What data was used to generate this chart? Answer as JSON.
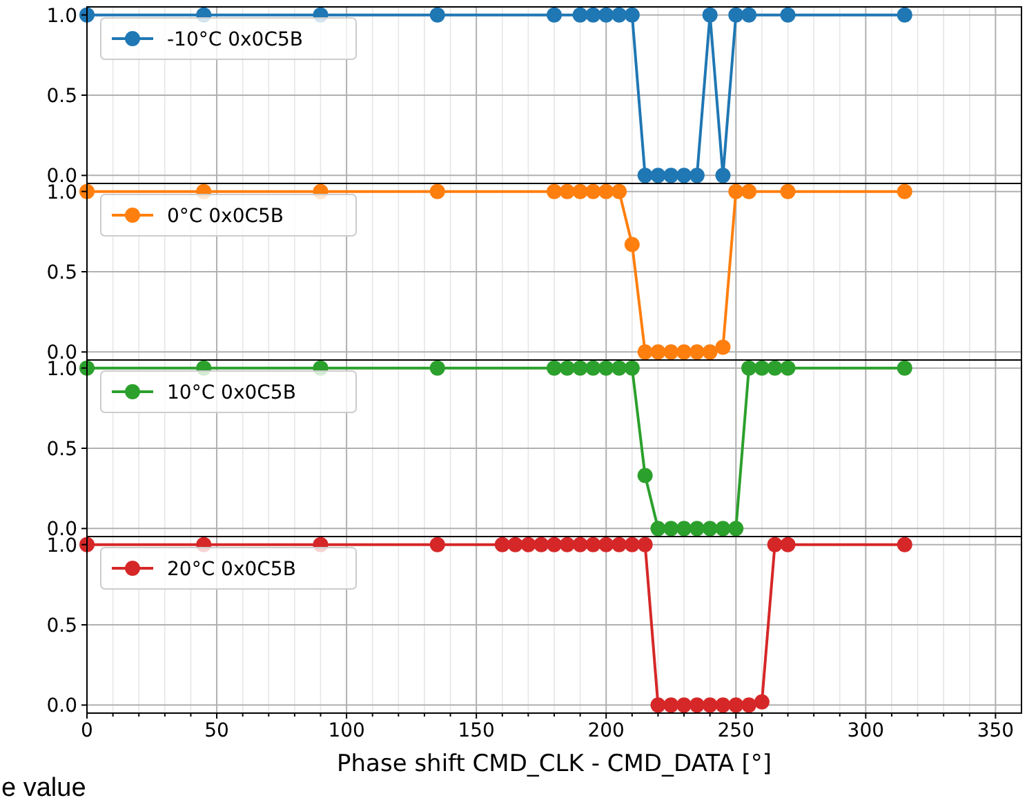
{
  "chart_data": [
    {
      "type": "line",
      "xlim": [
        0,
        360
      ],
      "ylim": [
        -0.05,
        1.05
      ],
      "xticks": [
        0,
        {
          "value": 10,
          "label": null
        },
        {
          "value": 20,
          "label": null
        },
        {
          "value": 30,
          "label": null
        },
        {
          "value": 40,
          "label": null
        },
        50,
        {
          "value": 60,
          "label": null
        },
        {
          "value": 70,
          "label": null
        },
        {
          "value": 80,
          "label": null
        },
        {
          "value": 90,
          "label": null
        },
        100,
        {
          "value": 110,
          "label": null
        },
        {
          "value": 120,
          "label": null
        },
        {
          "value": 130,
          "label": null
        },
        {
          "value": 140,
          "label": null
        },
        150,
        {
          "value": 160,
          "label": null
        },
        {
          "value": 170,
          "label": null
        },
        {
          "value": 180,
          "label": null
        },
        {
          "value": 190,
          "label": null
        },
        200,
        {
          "value": 210,
          "label": null
        },
        {
          "value": 220,
          "label": null
        },
        {
          "value": 230,
          "label": null
        },
        {
          "value": 240,
          "label": null
        },
        250,
        {
          "value": 260,
          "label": null
        },
        {
          "value": 270,
          "label": null
        },
        {
          "value": 280,
          "label": null
        },
        {
          "value": 290,
          "label": null
        },
        300,
        {
          "value": 310,
          "label": null
        },
        {
          "value": 320,
          "label": null
        },
        {
          "value": 330,
          "label": null
        },
        {
          "value": 340,
          "label": null
        },
        350
      ],
      "yticks": [
        {
          "value": 0,
          "label": "0.0"
        },
        {
          "value": 0.5,
          "label": "0.5"
        },
        {
          "value": 1,
          "label": "1.0"
        }
      ],
      "tick_labels": "y",
      "grid": true,
      "legend": "top left",
      "marker": "circle",
      "line_style": "solid",
      "series": [
        {
          "name": "-10°C 0x0C5B",
          "color": "#1f77b4",
          "x": [
            0,
            45,
            90,
            135,
            180,
            190,
            195,
            200,
            205,
            210,
            215,
            220,
            225,
            230,
            235,
            240,
            245,
            250,
            255,
            270,
            315
          ],
          "values": [
            1,
            1,
            1,
            1,
            1,
            1,
            1,
            1,
            1,
            1,
            0,
            0,
            0,
            0,
            0,
            1,
            0,
            1,
            1,
            1,
            1
          ]
        }
      ]
    },
    {
      "type": "line",
      "xlim": [
        0,
        360
      ],
      "ylim": [
        -0.05,
        1.05
      ],
      "xticks": [
        0,
        {
          "value": 10,
          "label": null
        },
        {
          "value": 20,
          "label": null
        },
        {
          "value": 30,
          "label": null
        },
        {
          "value": 40,
          "label": null
        },
        50,
        {
          "value": 60,
          "label": null
        },
        {
          "value": 70,
          "label": null
        },
        {
          "value": 80,
          "label": null
        },
        {
          "value": 90,
          "label": null
        },
        100,
        {
          "value": 110,
          "label": null
        },
        {
          "value": 120,
          "label": null
        },
        {
          "value": 130,
          "label": null
        },
        {
          "value": 140,
          "label": null
        },
        150,
        {
          "value": 160,
          "label": null
        },
        {
          "value": 170,
          "label": null
        },
        {
          "value": 180,
          "label": null
        },
        {
          "value": 190,
          "label": null
        },
        200,
        {
          "value": 210,
          "label": null
        },
        {
          "value": 220,
          "label": null
        },
        {
          "value": 230,
          "label": null
        },
        {
          "value": 240,
          "label": null
        },
        250,
        {
          "value": 260,
          "label": null
        },
        {
          "value": 270,
          "label": null
        },
        {
          "value": 280,
          "label": null
        },
        {
          "value": 290,
          "label": null
        },
        300,
        {
          "value": 310,
          "label": null
        },
        {
          "value": 320,
          "label": null
        },
        {
          "value": 330,
          "label": null
        },
        {
          "value": 340,
          "label": null
        },
        350
      ],
      "yticks": [
        {
          "value": 0,
          "label": "0.0"
        },
        {
          "value": 0.5,
          "label": "0.5"
        },
        {
          "value": 1,
          "label": "1.0"
        }
      ],
      "tick_labels": "y",
      "grid": true,
      "legend": "top left",
      "marker": "circle",
      "line_style": "solid",
      "series": [
        {
          "name": "0°C 0x0C5B",
          "color": "#ff7f0e",
          "x": [
            0,
            45,
            90,
            135,
            180,
            185,
            190,
            195,
            200,
            205,
            210,
            215,
            220,
            225,
            230,
            235,
            240,
            245,
            250,
            255,
            270,
            315
          ],
          "values": [
            1,
            1,
            1,
            1,
            1,
            1,
            1,
            1,
            1,
            1,
            0.67,
            0,
            0,
            0,
            0,
            0,
            0,
            0.03,
            1,
            1,
            1,
            1
          ]
        }
      ]
    },
    {
      "type": "line",
      "xlim": [
        0,
        360
      ],
      "ylim": [
        -0.05,
        1.05
      ],
      "xticks": [
        0,
        {
          "value": 10,
          "label": null
        },
        {
          "value": 20,
          "label": null
        },
        {
          "value": 30,
          "label": null
        },
        {
          "value": 40,
          "label": null
        },
        50,
        {
          "value": 60,
          "label": null
        },
        {
          "value": 70,
          "label": null
        },
        {
          "value": 80,
          "label": null
        },
        {
          "value": 90,
          "label": null
        },
        100,
        {
          "value": 110,
          "label": null
        },
        {
          "value": 120,
          "label": null
        },
        {
          "value": 130,
          "label": null
        },
        {
          "value": 140,
          "label": null
        },
        150,
        {
          "value": 160,
          "label": null
        },
        {
          "value": 170,
          "label": null
        },
        {
          "value": 180,
          "label": null
        },
        {
          "value": 190,
          "label": null
        },
        200,
        {
          "value": 210,
          "label": null
        },
        {
          "value": 220,
          "label": null
        },
        {
          "value": 230,
          "label": null
        },
        {
          "value": 240,
          "label": null
        },
        250,
        {
          "value": 260,
          "label": null
        },
        {
          "value": 270,
          "label": null
        },
        {
          "value": 280,
          "label": null
        },
        {
          "value": 290,
          "label": null
        },
        300,
        {
          "value": 310,
          "label": null
        },
        {
          "value": 320,
          "label": null
        },
        {
          "value": 330,
          "label": null
        },
        {
          "value": 340,
          "label": null
        },
        350
      ],
      "yticks": [
        {
          "value": 0,
          "label": "0.0"
        },
        {
          "value": 0.5,
          "label": "0.5"
        },
        {
          "value": 1,
          "label": "1.0"
        }
      ],
      "tick_labels": "y",
      "grid": true,
      "legend": "top left",
      "marker": "circle",
      "line_style": "solid",
      "series": [
        {
          "name": "10°C 0x0C5B",
          "color": "#2ca02c",
          "x": [
            0,
            45,
            90,
            135,
            180,
            185,
            190,
            195,
            200,
            205,
            210,
            215,
            220,
            225,
            230,
            235,
            240,
            245,
            250,
            255,
            260,
            265,
            270,
            315
          ],
          "values": [
            1,
            1,
            1,
            1,
            1,
            1,
            1,
            1,
            1,
            1,
            1,
            0.33,
            0,
            0,
            0,
            0,
            0,
            0,
            0,
            1,
            1,
            1,
            1,
            1
          ]
        }
      ]
    },
    {
      "type": "line",
      "xlabel": "Phase shift CMD_CLK - CMD_DATA [°]",
      "annotations": [
        "e value"
      ],
      "xlim": [
        0,
        360
      ],
      "ylim": [
        -0.05,
        1.05
      ],
      "xticks": [
        0,
        {
          "value": 10,
          "label": null
        },
        {
          "value": 20,
          "label": null
        },
        {
          "value": 30,
          "label": null
        },
        {
          "value": 40,
          "label": null
        },
        50,
        {
          "value": 60,
          "label": null
        },
        {
          "value": 70,
          "label": null
        },
        {
          "value": 80,
          "label": null
        },
        {
          "value": 90,
          "label": null
        },
        100,
        {
          "value": 110,
          "label": null
        },
        {
          "value": 120,
          "label": null
        },
        {
          "value": 130,
          "label": null
        },
        {
          "value": 140,
          "label": null
        },
        150,
        {
          "value": 160,
          "label": null
        },
        {
          "value": 170,
          "label": null
        },
        {
          "value": 180,
          "label": null
        },
        {
          "value": 190,
          "label": null
        },
        200,
        {
          "value": 210,
          "label": null
        },
        {
          "value": 220,
          "label": null
        },
        {
          "value": 230,
          "label": null
        },
        {
          "value": 240,
          "label": null
        },
        250,
        {
          "value": 260,
          "label": null
        },
        {
          "value": 270,
          "label": null
        },
        {
          "value": 280,
          "label": null
        },
        {
          "value": 290,
          "label": null
        },
        300,
        {
          "value": 310,
          "label": null
        },
        {
          "value": 320,
          "label": null
        },
        {
          "value": 330,
          "label": null
        },
        {
          "value": 340,
          "label": null
        },
        350
      ],
      "yticks": [
        {
          "value": 0,
          "label": "0.0"
        },
        {
          "value": 0.5,
          "label": "0.5"
        },
        {
          "value": 1,
          "label": "1.0"
        }
      ],
      "grid": true,
      "legend": "top left",
      "marker": "circle",
      "line_style": "solid",
      "series": [
        {
          "name": "20°C 0x0C5B",
          "color": "#d62728",
          "x": [
            0,
            45,
            90,
            135,
            160,
            165,
            170,
            175,
            180,
            185,
            190,
            195,
            200,
            205,
            210,
            215,
            220,
            225,
            230,
            235,
            240,
            245,
            250,
            255,
            260,
            265,
            270,
            315
          ],
          "values": [
            1,
            1,
            1,
            1,
            1,
            1,
            1,
            1,
            1,
            1,
            1,
            1,
            1,
            1,
            1,
            1,
            0,
            0,
            0,
            0,
            0,
            0,
            0,
            0,
            0.02,
            1,
            1,
            1
          ]
        }
      ]
    }
  ]
}
